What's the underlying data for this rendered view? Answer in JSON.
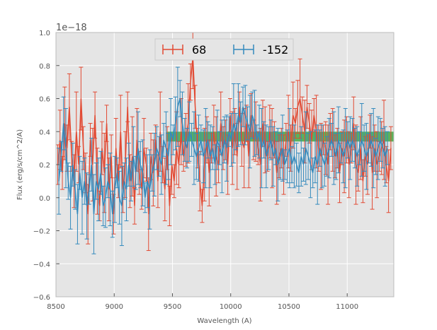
{
  "chart_data": {
    "type": "line",
    "xlabel": "Wavelength (A)",
    "ylabel": "Flux (erg/s/cm^2/A)",
    "y_offset_label": "1e−18",
    "xlim": [
      8500,
      11400
    ],
    "ylim": [
      -0.6,
      1.0
    ],
    "x_ticks": [
      8500,
      9000,
      9500,
      10000,
      10500,
      11000
    ],
    "x_tick_labels": [
      "8500",
      "9000",
      "9500",
      "10000",
      "10500",
      "11000"
    ],
    "y_ticks": [
      -0.6,
      -0.4,
      -0.2,
      0.0,
      0.2,
      0.4,
      0.6,
      0.8,
      1.0
    ],
    "y_tick_labels": [
      "−0.6",
      "−0.4",
      "−0.2",
      "0.0",
      "0.2",
      "0.4",
      "0.6",
      "0.8",
      "1.0"
    ],
    "grid": true,
    "legend_position": "top-center",
    "background_color": "#e5e5e5",
    "band": {
      "x_start": 9450,
      "x_end": 11400,
      "y_low": 0.34,
      "y_high": 0.4,
      "color": "#2ca02c"
    },
    "series": [
      {
        "name": "68",
        "color": "#e24a33",
        "x_start": 8515,
        "x_step": 20,
        "values": [
          0.2,
          0.35,
          0.15,
          0.45,
          0.3,
          0.55,
          0.25,
          0.1,
          0.4,
          0.2,
          0.6,
          0.3,
          0.15,
          -0.1,
          0.35,
          0.2,
          0.5,
          0.1,
          -0.05,
          0.3,
          0.15,
          0.45,
          0.05,
          0.25,
          -0.1,
          0.3,
          0.1,
          0.4,
          0.05,
          0.2,
          0.55,
          0.1,
          0.25,
          -0.05,
          0.35,
          0.15,
          0.05,
          0.3,
          0.2,
          -0.1,
          0.25,
          0.15,
          0.35,
          0.1,
          0.4,
          0.2,
          0.05,
          0.3,
          -0.05,
          0.2,
          0.1,
          0.3,
          0.2,
          0.4,
          0.25,
          0.35,
          0.45,
          0.7,
          0.85,
          0.55,
          0.3,
          0.1,
          -0.05,
          0.2,
          0.35,
          0.15,
          0.3,
          0.4,
          0.25,
          0.2,
          0.45,
          0.3,
          0.35,
          0.2,
          0.5,
          0.3,
          0.4,
          0.25,
          0.55,
          0.35,
          0.3,
          0.45,
          0.25,
          0.5,
          0.35,
          0.4,
          0.3,
          0.2,
          0.45,
          0.35,
          0.25,
          0.4,
          0.3,
          0.35,
          0.15,
          0.25,
          0.3,
          0.2,
          0.35,
          0.4,
          0.3,
          0.5,
          0.45,
          0.55,
          0.6,
          0.5,
          0.4,
          0.55,
          0.45,
          0.35,
          0.5,
          0.4,
          0.3,
          0.25,
          0.35,
          0.3,
          0.2,
          0.4,
          0.35,
          0.25,
          0.3,
          0.15,
          0.3,
          0.25,
          0.35,
          0.2,
          0.3,
          0.45,
          0.2,
          0.15,
          0.3,
          0.1,
          0.25,
          0.2,
          0.4,
          0.15,
          0.3,
          0.2,
          0.25,
          0.3,
          0.35,
          0.2,
          0.1,
          0.3
        ]
      },
      {
        "name": "-152",
        "color": "#348abd",
        "x_start": 8525,
        "x_step": 20,
        "values": [
          0.1,
          0.25,
          0.45,
          0.3,
          0.1,
          0.0,
          0.2,
          0.05,
          -0.1,
          0.15,
          0.0,
          0.1,
          -0.05,
          0.05,
          0.2,
          -0.1,
          0.1,
          0.05,
          0.15,
          -0.05,
          0.0,
          0.1,
          0.05,
          -0.1,
          0.05,
          0.15,
          0.0,
          -0.05,
          0.1,
          0.05,
          0.2,
          0.1,
          0.25,
          0.15,
          0.3,
          0.2,
          0.15,
          0.0,
          0.1,
          0.05,
          0.15,
          0.2,
          0.3,
          0.25,
          0.2,
          0.35,
          0.3,
          0.25,
          0.4,
          0.35,
          0.45,
          0.55,
          0.6,
          0.45,
          0.35,
          0.3,
          0.4,
          0.35,
          0.3,
          0.25,
          0.3,
          0.35,
          0.25,
          0.3,
          0.35,
          0.25,
          0.3,
          0.2,
          0.35,
          0.3,
          0.25,
          0.35,
          0.3,
          0.4,
          0.35,
          0.45,
          0.4,
          0.5,
          0.45,
          0.55,
          0.5,
          0.45,
          0.4,
          0.5,
          0.45,
          0.35,
          0.4,
          0.3,
          0.35,
          0.25,
          0.3,
          0.35,
          0.25,
          0.3,
          0.2,
          0.25,
          0.3,
          0.2,
          0.25,
          0.3,
          0.2,
          0.25,
          0.2,
          0.15,
          0.25,
          0.2,
          0.3,
          0.25,
          0.2,
          0.15,
          0.25,
          0.2,
          0.3,
          0.25,
          0.2,
          0.25,
          0.3,
          0.35,
          0.3,
          0.25,
          0.35,
          0.3,
          0.25,
          0.3,
          0.35,
          0.3,
          0.35,
          0.3,
          0.25,
          0.3,
          0.35,
          0.3,
          0.25,
          0.3,
          0.35,
          0.3,
          0.25,
          0.3,
          0.35,
          0.3,
          0.25,
          0.3
        ]
      }
    ]
  }
}
